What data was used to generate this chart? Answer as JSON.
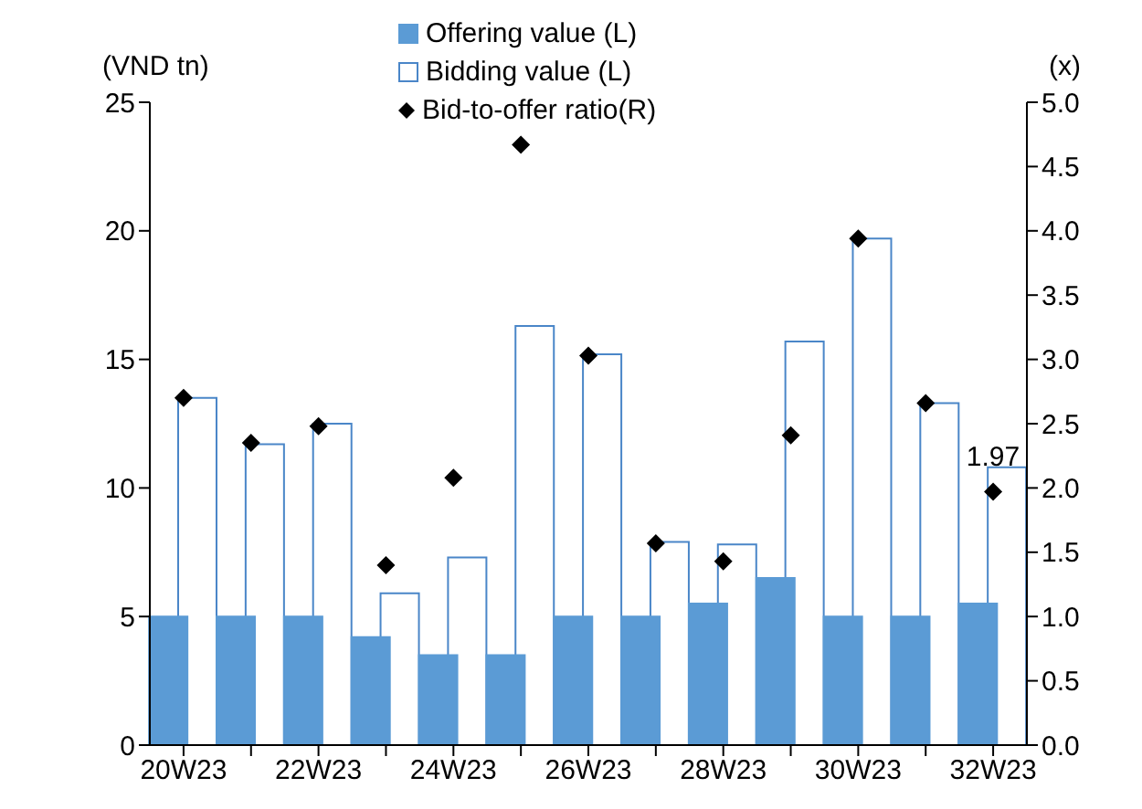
{
  "chart_data": {
    "type": "bar",
    "ylabel": "(VND tn)",
    "y2label": "(x)",
    "categories": [
      "20W23",
      null,
      "22W23",
      null,
      "24W23",
      null,
      "26W23",
      null,
      "28W23",
      null,
      "30W23",
      null,
      "32W23"
    ],
    "series": [
      {
        "name": "Offering value (L)",
        "color": "#5b9bd5",
        "values": [
          5,
          5,
          5,
          4.2,
          3.5,
          3.5,
          5,
          5,
          5.5,
          6.5,
          5,
          5,
          5.5
        ]
      },
      {
        "name": "Bidding value (L)",
        "color": "#4a86c8",
        "values": [
          13.5,
          11.7,
          12.5,
          5.9,
          7.3,
          16.3,
          15.2,
          7.9,
          7.8,
          15.7,
          19.7,
          13.3,
          10.8
        ]
      },
      {
        "name": "Bid-to-offer ratio(R)",
        "type": "scatter",
        "axis": "y2",
        "marker": "diamond",
        "color": "#000000",
        "values": [
          2.7,
          2.35,
          2.48,
          1.4,
          2.08,
          4.67,
          3.03,
          1.57,
          1.43,
          2.41,
          3.94,
          2.66,
          1.97
        ],
        "value_labels": [
          null,
          null,
          null,
          null,
          null,
          null,
          null,
          null,
          null,
          null,
          null,
          null,
          "1.97"
        ]
      }
    ],
    "ylim": [
      0,
      25
    ],
    "yticks": [
      0,
      5,
      10,
      15,
      20,
      25
    ],
    "y2lim": [
      0,
      5
    ],
    "y2ticks": [
      {
        "value": 0,
        "label": "0.0"
      },
      {
        "value": 0.5,
        "label": "0.5"
      },
      {
        "value": 1,
        "label": "1.0"
      },
      {
        "value": 1.5,
        "label": "1.5"
      },
      {
        "value": 2,
        "label": "2.0"
      },
      {
        "value": 2.5,
        "label": "2.5"
      },
      {
        "value": 3,
        "label": "3.0"
      },
      {
        "value": 3.5,
        "label": "3.5"
      },
      {
        "value": 4,
        "label": "4.0"
      },
      {
        "value": 4.5,
        "label": "4.5"
      },
      {
        "value": 5,
        "label": "5.0"
      }
    ],
    "legend": "top",
    "grid": false
  }
}
